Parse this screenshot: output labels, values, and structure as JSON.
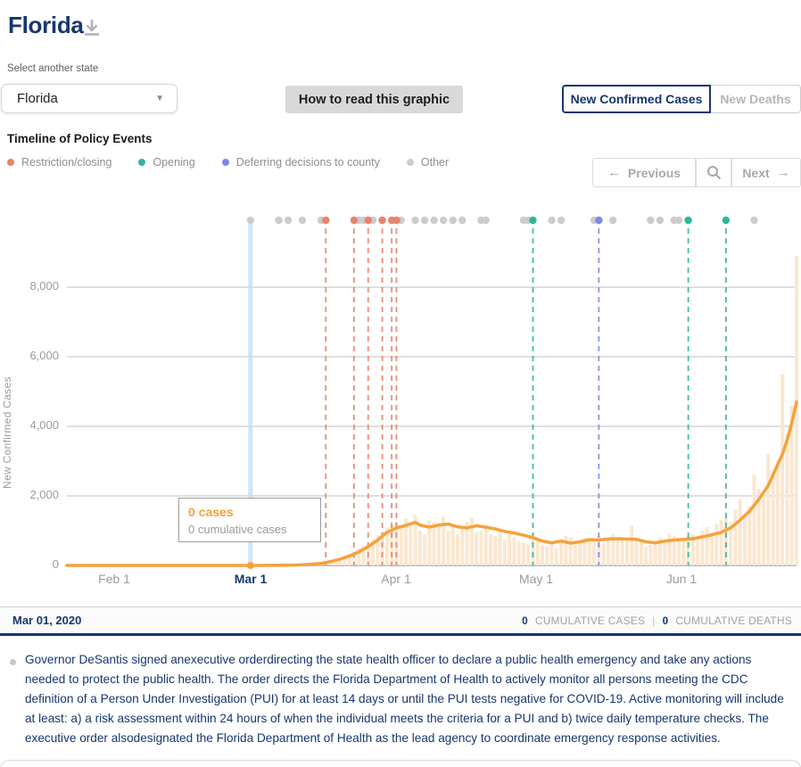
{
  "header": {
    "title": "Florida",
    "select_label": "Select another state",
    "state_dropdown_value": "Florida",
    "howto_label": "How to read this graphic",
    "toggle": {
      "cases_label": "New Confirmed Cases",
      "deaths_label": "New Deaths"
    }
  },
  "timeline": {
    "title": "Timeline of Policy Events",
    "legend": [
      {
        "label": "Restriction/closing",
        "color": "#e8836b"
      },
      {
        "label": "Opening",
        "color": "#2fb69a"
      },
      {
        "label": "Deferring decisions to county",
        "color": "#7d88ea"
      },
      {
        "label": "Other",
        "color": "#cccccc"
      }
    ],
    "nav": {
      "prev_label": "Previous",
      "next_label": "Next",
      "prev_arrow": "←",
      "next_arrow": "→"
    }
  },
  "chart_data": {
    "type": "line",
    "ylabel": "New Confirmed Cases",
    "y_ticks": [
      0,
      2000,
      4000,
      6000,
      8000
    ],
    "y_tick_labels": [
      "8,000",
      "6,000",
      "4,000",
      "2,000",
      "0"
    ],
    "ylim": [
      0,
      9600
    ],
    "x_tick_labels": [
      "Feb 1",
      "Mar 1",
      "Apr 1",
      "May 1",
      "Jun 1"
    ],
    "x_tick_days": [
      10,
      39,
      70,
      100,
      131
    ],
    "x_domain": {
      "start_date": "Jan 22, 2020",
      "end_date": "Jun 25, 2020",
      "total_days": 155
    },
    "grid": true,
    "colors": {
      "avg_line": "#f6a13b",
      "daily_bar": "#fae7d0",
      "selected_band": "#c7dcf2",
      "restriction": "#e8836b",
      "opening": "#2fb69a",
      "deferring": "#7d88ea",
      "other": "#cccccc"
    },
    "avg_line": {
      "name": "7-day average new confirmed cases",
      "days": [
        0,
        20,
        39,
        46,
        48,
        50,
        52,
        54,
        56,
        58,
        60,
        62,
        64,
        66,
        68,
        70,
        72,
        74,
        75,
        77,
        79,
        81,
        83,
        85,
        87,
        89,
        91,
        93,
        95,
        97,
        99,
        101,
        103,
        105,
        107,
        109,
        111,
        113,
        115,
        117,
        119,
        121,
        123,
        125,
        127,
        129,
        131,
        133,
        135,
        137,
        139,
        141,
        143,
        145,
        147,
        149,
        151,
        152,
        153,
        154,
        155
      ],
      "values": [
        0,
        0,
        0,
        5,
        10,
        20,
        35,
        60,
        110,
        180,
        270,
        390,
        540,
        730,
        950,
        1080,
        1150,
        1240,
        1160,
        1100,
        1160,
        1190,
        1110,
        1080,
        1140,
        1100,
        1050,
        980,
        930,
        870,
        800,
        700,
        650,
        700,
        640,
        680,
        740,
        730,
        760,
        770,
        760,
        750,
        680,
        650,
        700,
        730,
        750,
        770,
        820,
        880,
        950,
        1080,
        1300,
        1560,
        1900,
        2300,
        2900,
        3200,
        3600,
        4100,
        4700
      ]
    },
    "daily_bars": {
      "name": "daily new confirmed cases",
      "start_day": 52,
      "values": [
        30,
        45,
        70,
        90,
        130,
        170,
        220,
        280,
        330,
        400,
        480,
        560,
        650,
        760,
        870,
        990,
        1100,
        1170,
        1250,
        1100,
        1350,
        1200,
        1450,
        1000,
        900,
        1300,
        1250,
        1100,
        1400,
        1000,
        1150,
        900,
        1050,
        1250,
        1380,
        950,
        1000,
        1150,
        900,
        850,
        1050,
        750,
        900,
        800,
        700,
        650,
        600,
        900,
        750,
        600,
        550,
        650,
        500,
        700,
        850,
        800,
        600,
        650,
        800,
        750,
        700,
        850,
        650,
        750,
        900,
        800,
        750,
        700,
        1150,
        800,
        700,
        550,
        600,
        700,
        800,
        750,
        900,
        850,
        800,
        750,
        850,
        900,
        800,
        1000,
        1100,
        950,
        1200,
        1300,
        1400,
        1250,
        1600,
        1900,
        1400,
        1700,
        2600,
        2200,
        2000,
        3200,
        2700,
        3000,
        5500,
        3800,
        4600,
        8900
      ]
    },
    "events": {
      "restriction_days": [
        55,
        61,
        64,
        67,
        69,
        70
      ],
      "opening_days": [
        99,
        132,
        140
      ],
      "deferring_days": [
        113
      ],
      "other_days": [
        39,
        45,
        47,
        50,
        54,
        62,
        63,
        65,
        71,
        74,
        76,
        78,
        80,
        82,
        84,
        88,
        89,
        97,
        98,
        103,
        105,
        112,
        116,
        124,
        126,
        129,
        130,
        146
      ]
    },
    "selected": {
      "day": 39,
      "x_label": "Mar 1"
    }
  },
  "tooltip": {
    "cases": "0 cases",
    "cumulative": "0 cumulative cases"
  },
  "datebar": {
    "date": "Mar 01, 2020",
    "cases_value": "0",
    "cases_label": "CUMULATIVE CASES",
    "separator": "|",
    "deaths_value": "0",
    "deaths_label": "CUMULATIVE DEATHS"
  },
  "event_note": {
    "text": "Governor DeSantis signed anexecutive orderdirecting the state health officer to declare a public health emergency and take any actions needed to protect the public health. The order directs the Florida Department of Health to actively monitor all persons meeting the CDC definition of a Person Under Investigation (PUI) for at least 14 days or until the PUI tests negative for COVID-19. Active monitoring will include at least: a) a risk assessment within 24 hours of when the individual meets the criteria for a PUI and b) twice daily temperature checks. The executive order alsodesignated the Florida Department of Health as the lead agency to coordinate emergency response activities."
  }
}
